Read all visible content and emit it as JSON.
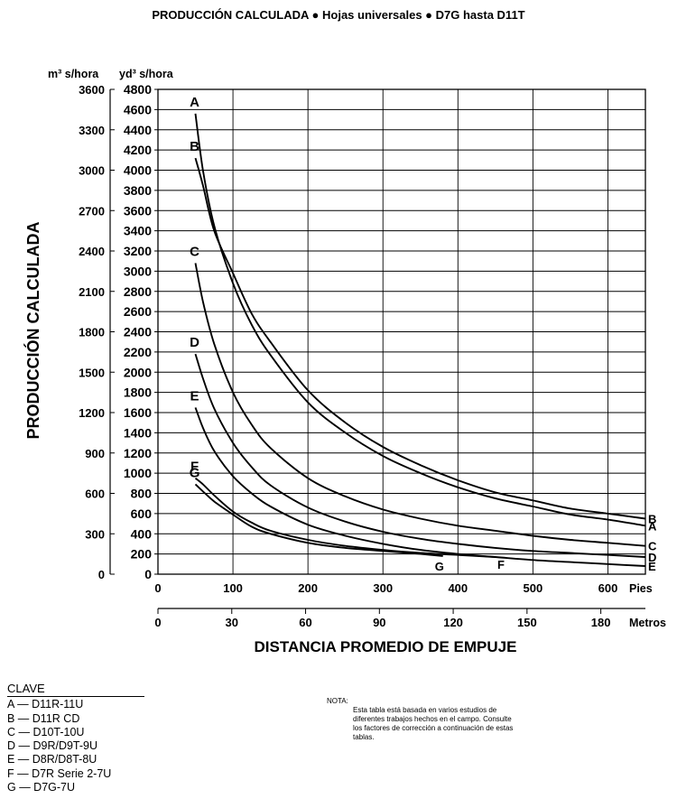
{
  "chart_data": {
    "type": "line",
    "title": "PRODUCCIÓN CALCULADA ● Hojas universales ● D7G hasta D11T",
    "ylabel": "PRODUCCIÓN CALCULADA",
    "xlabel": "DISTANCIA PROMEDIO DE EMPUJE",
    "y_units": [
      "m³ s/hora",
      "yd³ s/hora"
    ],
    "x_units": [
      "Pies",
      "Metros"
    ],
    "ylim_yd3": [
      0,
      4800
    ],
    "ylim_m3": [
      0,
      3600
    ],
    "yticks_m3": [
      "0",
      "300",
      "600",
      "900",
      "1200",
      "1500",
      "1800",
      "2100",
      "2400",
      "2700",
      "3000",
      "3300",
      "3600"
    ],
    "yticks_yd3": [
      "0",
      "200",
      "400",
      "600",
      "800",
      "1000",
      "1200",
      "1400",
      "1600",
      "1800",
      "2000",
      "2200",
      "2400",
      "2600",
      "2800",
      "3000",
      "3200",
      "3400",
      "3600",
      "3800",
      "4000",
      "4200",
      "4400",
      "4600",
      "4800"
    ],
    "xlim_ft": [
      0,
      650
    ],
    "xticks_ft": [
      "0",
      "100",
      "200",
      "300",
      "400",
      "500",
      "600"
    ],
    "xticks_m": [
      "0",
      "30",
      "60",
      "90",
      "120",
      "150",
      "180"
    ],
    "grid": true,
    "series": [
      {
        "name": "A",
        "end_label": "A",
        "points": [
          [
            50,
            4560
          ],
          [
            60,
            4000
          ],
          [
            75,
            3450
          ],
          [
            100,
            2880
          ],
          [
            125,
            2470
          ],
          [
            150,
            2170
          ],
          [
            200,
            1700
          ],
          [
            250,
            1400
          ],
          [
            300,
            1170
          ],
          [
            350,
            1000
          ],
          [
            400,
            860
          ],
          [
            450,
            750
          ],
          [
            500,
            670
          ],
          [
            550,
            590
          ],
          [
            600,
            540
          ],
          [
            650,
            480
          ]
        ]
      },
      {
        "name": "B",
        "end_label": "B",
        "points": [
          [
            50,
            4120
          ],
          [
            60,
            3850
          ],
          [
            75,
            3400
          ],
          [
            100,
            2980
          ],
          [
            125,
            2580
          ],
          [
            150,
            2300
          ],
          [
            200,
            1820
          ],
          [
            250,
            1500
          ],
          [
            300,
            1260
          ],
          [
            350,
            1080
          ],
          [
            400,
            930
          ],
          [
            450,
            810
          ],
          [
            500,
            730
          ],
          [
            550,
            650
          ],
          [
            600,
            600
          ],
          [
            650,
            550
          ]
        ]
      },
      {
        "name": "C",
        "end_label": "C",
        "points": [
          [
            50,
            3080
          ],
          [
            60,
            2700
          ],
          [
            75,
            2280
          ],
          [
            100,
            1800
          ],
          [
            125,
            1480
          ],
          [
            150,
            1250
          ],
          [
            200,
            950
          ],
          [
            250,
            770
          ],
          [
            300,
            640
          ],
          [
            350,
            550
          ],
          [
            400,
            480
          ],
          [
            450,
            430
          ],
          [
            500,
            380
          ],
          [
            550,
            340
          ],
          [
            600,
            310
          ],
          [
            650,
            280
          ]
        ]
      },
      {
        "name": "D",
        "end_label": "D",
        "points": [
          [
            50,
            2180
          ],
          [
            60,
            1940
          ],
          [
            75,
            1640
          ],
          [
            100,
            1300
          ],
          [
            125,
            1060
          ],
          [
            150,
            880
          ],
          [
            200,
            660
          ],
          [
            250,
            520
          ],
          [
            300,
            420
          ],
          [
            350,
            350
          ],
          [
            400,
            300
          ],
          [
            450,
            260
          ],
          [
            500,
            230
          ],
          [
            550,
            210
          ],
          [
            600,
            190
          ],
          [
            650,
            170
          ]
        ]
      },
      {
        "name": "E",
        "end_label": "E",
        "points": [
          [
            50,
            1650
          ],
          [
            60,
            1450
          ],
          [
            75,
            1220
          ],
          [
            100,
            970
          ],
          [
            125,
            800
          ],
          [
            150,
            670
          ],
          [
            200,
            490
          ],
          [
            250,
            380
          ],
          [
            300,
            300
          ],
          [
            350,
            240
          ],
          [
            400,
            200
          ],
          [
            450,
            170
          ],
          [
            500,
            140
          ],
          [
            550,
            120
          ],
          [
            600,
            100
          ],
          [
            650,
            80
          ]
        ]
      },
      {
        "name": "F",
        "end_label": "F",
        "label_end_x": 455,
        "points": [
          [
            50,
            950
          ],
          [
            60,
            890
          ],
          [
            75,
            780
          ],
          [
            100,
            620
          ],
          [
            125,
            510
          ],
          [
            150,
            430
          ],
          [
            200,
            340
          ],
          [
            250,
            280
          ],
          [
            300,
            240
          ],
          [
            350,
            210
          ],
          [
            400,
            190
          ],
          [
            450,
            170
          ]
        ]
      },
      {
        "name": "G",
        "end_label": "G",
        "label_end_x": 385,
        "points": [
          [
            50,
            890
          ],
          [
            60,
            820
          ],
          [
            75,
            720
          ],
          [
            100,
            590
          ],
          [
            125,
            470
          ],
          [
            150,
            400
          ],
          [
            200,
            310
          ],
          [
            250,
            260
          ],
          [
            300,
            230
          ],
          [
            350,
            200
          ],
          [
            380,
            180
          ]
        ]
      }
    ]
  },
  "clave": {
    "title": "CLAVE",
    "items": [
      "A — D11R-11U",
      "B — D11R CD",
      "C — D10T-10U",
      "D — D9R/D9T-9U",
      "E — D8R/D8T-8U",
      "F — D7R Serie 2-7U",
      "G — D7G-7U"
    ]
  },
  "nota": {
    "lead": "NOTA:",
    "text": "Esta tabla está basada en varios estudios de diferentes trabajos hechos en el campo. Consulte los factores de corrección a continuación de estas tablas."
  }
}
